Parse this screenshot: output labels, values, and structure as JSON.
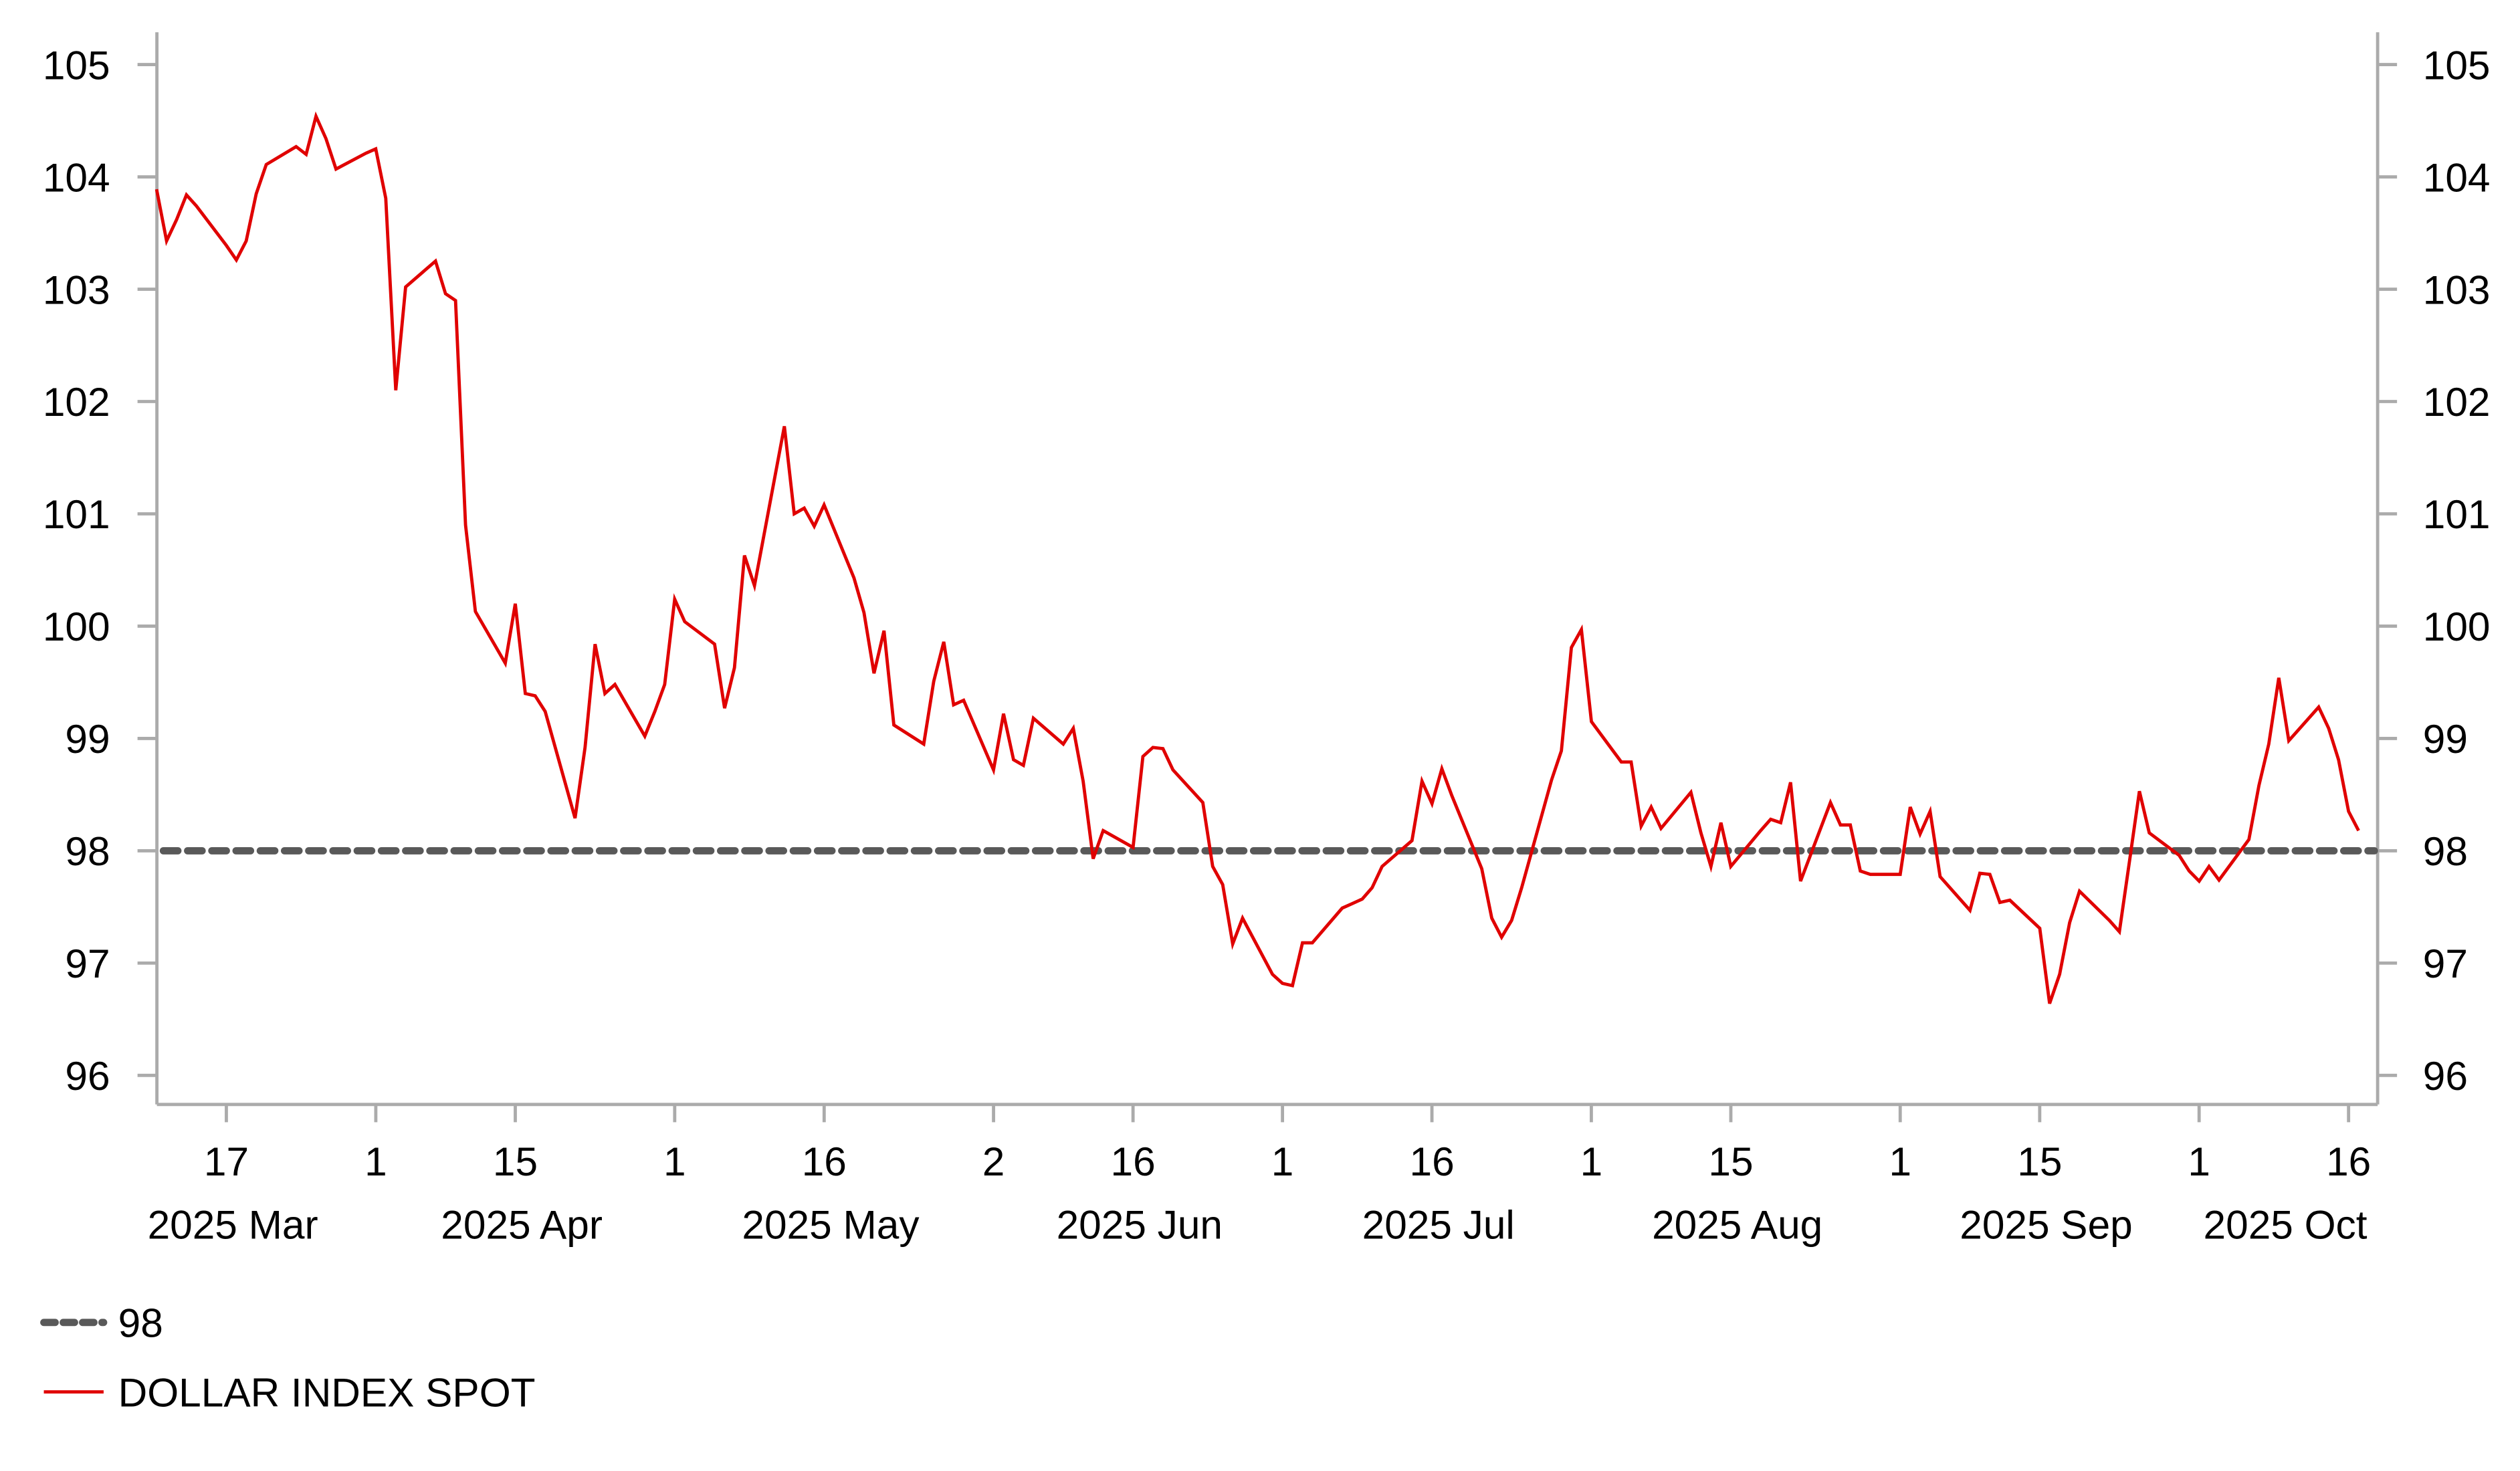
{
  "chart_data": {
    "type": "line",
    "title": "",
    "xlabel": "",
    "ylabel": "",
    "ylim": [
      95.75,
      105.3
    ],
    "yticks": [
      96,
      97,
      98,
      99,
      100,
      101,
      102,
      103,
      104,
      105
    ],
    "ytick_labels": [
      "96",
      "97",
      "98",
      "99",
      "100",
      "101",
      "102",
      "103",
      "104",
      "105"
    ],
    "y_axes": [
      "left",
      "right"
    ],
    "grid": false,
    "legend_position": "bottom-left",
    "xticks": [
      {
        "date": "2025-03-17",
        "label": "17"
      },
      {
        "date": "2025-04-01",
        "label": "1"
      },
      {
        "date": "2025-04-15",
        "label": "15"
      },
      {
        "date": "2025-05-01",
        "label": "1"
      },
      {
        "date": "2025-05-16",
        "label": "16"
      },
      {
        "date": "2025-06-02",
        "label": "2"
      },
      {
        "date": "2025-06-16",
        "label": "16"
      },
      {
        "date": "2025-07-01",
        "label": "1"
      },
      {
        "date": "2025-07-16",
        "label": "16"
      },
      {
        "date": "2025-08-01",
        "label": "1"
      },
      {
        "date": "2025-08-15",
        "label": "15"
      },
      {
        "date": "2025-09-01",
        "label": "1"
      },
      {
        "date": "2025-09-15",
        "label": "15"
      },
      {
        "date": "2025-10-01",
        "label": "1"
      },
      {
        "date": "2025-10-16",
        "label": "16"
      }
    ],
    "month_labels": [
      {
        "date": "2025-03-17",
        "label": "2025 Mar"
      },
      {
        "date": "2025-04-15",
        "label": "2025 Apr"
      },
      {
        "date": "2025-05-16",
        "label": "2025 May"
      },
      {
        "date": "2025-06-16",
        "label": "2025 Jun"
      },
      {
        "date": "2025-07-16",
        "label": "2025 Jul"
      },
      {
        "date": "2025-08-15",
        "label": "2025 Aug"
      },
      {
        "date": "2025-09-15",
        "label": "2025 Sep"
      },
      {
        "date": "2025-10-09",
        "label": "2025 Oct"
      }
    ],
    "reference_line": {
      "name": "98",
      "value": 98,
      "color": "#595959",
      "style": "dashed"
    },
    "series": [
      {
        "name": "DOLLAR INDEX SPOT",
        "color": "#e00000",
        "x": [
          "2025-03-10",
          "2025-03-11",
          "2025-03-12",
          "2025-03-13",
          "2025-03-14",
          "2025-03-17",
          "2025-03-18",
          "2025-03-19",
          "2025-03-20",
          "2025-03-21",
          "2025-03-24",
          "2025-03-25",
          "2025-03-26",
          "2025-03-27",
          "2025-03-28",
          "2025-03-31",
          "2025-04-01",
          "2025-04-02",
          "2025-04-03",
          "2025-04-04",
          "2025-04-07",
          "2025-04-08",
          "2025-04-09",
          "2025-04-10",
          "2025-04-11",
          "2025-04-14",
          "2025-04-15",
          "2025-04-16",
          "2025-04-17",
          "2025-04-18",
          "2025-04-21",
          "2025-04-22",
          "2025-04-23",
          "2025-04-24",
          "2025-04-25",
          "2025-04-28",
          "2025-04-29",
          "2025-04-30",
          "2025-05-01",
          "2025-05-02",
          "2025-05-05",
          "2025-05-06",
          "2025-05-07",
          "2025-05-08",
          "2025-05-09",
          "2025-05-12",
          "2025-05-13",
          "2025-05-14",
          "2025-05-15",
          "2025-05-16",
          "2025-05-19",
          "2025-05-20",
          "2025-05-21",
          "2025-05-22",
          "2025-05-23",
          "2025-05-26",
          "2025-05-27",
          "2025-05-28",
          "2025-05-29",
          "2025-05-30",
          "2025-06-02",
          "2025-06-03",
          "2025-06-04",
          "2025-06-05",
          "2025-06-06",
          "2025-06-09",
          "2025-06-10",
          "2025-06-11",
          "2025-06-12",
          "2025-06-13",
          "2025-06-16",
          "2025-06-17",
          "2025-06-18",
          "2025-06-19",
          "2025-06-20",
          "2025-06-23",
          "2025-06-24",
          "2025-06-25",
          "2025-06-26",
          "2025-06-27",
          "2025-06-30",
          "2025-07-01",
          "2025-07-02",
          "2025-07-03",
          "2025-07-04",
          "2025-07-07",
          "2025-07-08",
          "2025-07-09",
          "2025-07-10",
          "2025-07-11",
          "2025-07-14",
          "2025-07-15",
          "2025-07-16",
          "2025-07-17",
          "2025-07-18",
          "2025-07-21",
          "2025-07-22",
          "2025-07-23",
          "2025-07-24",
          "2025-07-25",
          "2025-07-28",
          "2025-07-29",
          "2025-07-30",
          "2025-07-31",
          "2025-08-01",
          "2025-08-04",
          "2025-08-05",
          "2025-08-06",
          "2025-08-07",
          "2025-08-08",
          "2025-08-11",
          "2025-08-12",
          "2025-08-13",
          "2025-08-14",
          "2025-08-15",
          "2025-08-18",
          "2025-08-19",
          "2025-08-20",
          "2025-08-21",
          "2025-08-22",
          "2025-08-25",
          "2025-08-26",
          "2025-08-27",
          "2025-08-28",
          "2025-08-29",
          "2025-09-01",
          "2025-09-02",
          "2025-09-03",
          "2025-09-04",
          "2025-09-05",
          "2025-09-08",
          "2025-09-09",
          "2025-09-10",
          "2025-09-11",
          "2025-09-12",
          "2025-09-15",
          "2025-09-16",
          "2025-09-17",
          "2025-09-18",
          "2025-09-19",
          "2025-09-22",
          "2025-09-23",
          "2025-09-24",
          "2025-09-25",
          "2025-09-26",
          "2025-09-29",
          "2025-09-30",
          "2025-10-01",
          "2025-10-02",
          "2025-10-03",
          "2025-10-06",
          "2025-10-07",
          "2025-10-08",
          "2025-10-09",
          "2025-10-10",
          "2025-10-13",
          "2025-10-14",
          "2025-10-15",
          "2025-10-16",
          "2025-10-17"
        ],
        "y": [
          103.89,
          103.43,
          103.62,
          103.84,
          103.74,
          103.39,
          103.26,
          103.43,
          103.85,
          104.11,
          104.27,
          104.2,
          104.54,
          104.34,
          104.07,
          104.21,
          104.25,
          103.81,
          102.1,
          103.02,
          103.25,
          102.96,
          102.9,
          100.9,
          100.13,
          99.67,
          100.2,
          99.4,
          99.38,
          99.24,
          98.29,
          98.92,
          99.84,
          99.4,
          99.48,
          99.02,
          99.24,
          99.48,
          100.24,
          100.04,
          99.84,
          99.27,
          99.63,
          100.63,
          100.36,
          101.78,
          101.0,
          101.05,
          100.89,
          101.08,
          100.43,
          100.12,
          99.58,
          99.96,
          99.12,
          98.95,
          99.51,
          99.86,
          99.3,
          99.34,
          98.72,
          99.22,
          98.81,
          98.76,
          99.18,
          98.95,
          99.09,
          98.62,
          97.93,
          98.18,
          98.03,
          98.84,
          98.92,
          98.91,
          98.72,
          98.43,
          97.86,
          97.7,
          97.17,
          97.4,
          96.9,
          96.82,
          96.8,
          97.18,
          97.18,
          97.49,
          97.53,
          97.57,
          97.67,
          97.86,
          98.09,
          98.62,
          98.42,
          98.73,
          98.49,
          97.84,
          97.4,
          97.23,
          97.38,
          97.67,
          98.63,
          98.89,
          99.81,
          99.97,
          99.15,
          98.79,
          98.79,
          98.22,
          98.39,
          98.2,
          98.52,
          98.16,
          97.86,
          98.25,
          97.86,
          98.18,
          98.28,
          98.25,
          98.61,
          97.73,
          98.43,
          98.23,
          98.23,
          97.82,
          97.79,
          97.79,
          98.39,
          98.15,
          98.35,
          97.77,
          97.47,
          97.8,
          97.79,
          97.54,
          97.56,
          97.31,
          96.64,
          96.9,
          97.36,
          97.64,
          97.38,
          97.28,
          97.9,
          98.53,
          98.16,
          97.96,
          97.82,
          97.73,
          97.86,
          97.74,
          98.1,
          98.58,
          98.95,
          99.54,
          98.98,
          99.28,
          99.09,
          98.81,
          98.35,
          98.18
        ]
      }
    ],
    "legend": [
      {
        "label": "98",
        "style": "dashed",
        "color": "#595959"
      },
      {
        "label": "DOLLAR INDEX SPOT",
        "style": "solid",
        "color": "#e00000"
      }
    ]
  }
}
